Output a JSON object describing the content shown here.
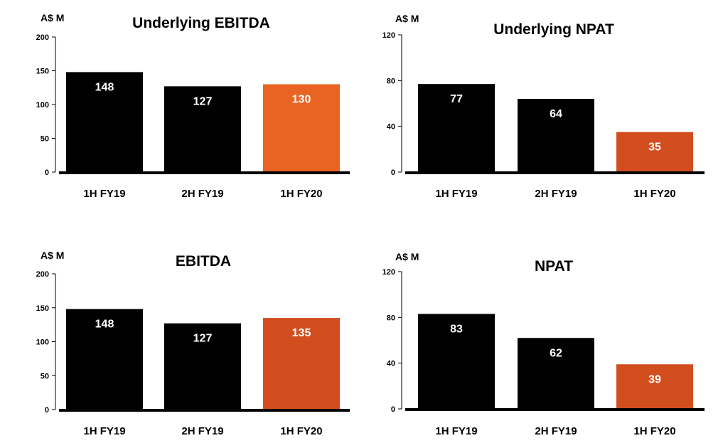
{
  "charts": [
    {
      "title": "Underlying EBITDA",
      "unit": "A$ M",
      "type": "bar",
      "categories": [
        "1H FY19",
        "2H FY19",
        "1H FY20"
      ],
      "values": [
        148,
        127,
        130
      ],
      "value_labels": [
        "148",
        "127",
        "130"
      ],
      "ylim": [
        0,
        200
      ],
      "yticks": [
        0,
        50,
        100,
        150,
        200
      ],
      "bar_colors": [
        "#000000",
        "#000000",
        "#E96322"
      ]
    },
    {
      "title": "Underlying NPAT",
      "unit": "A$ M",
      "type": "bar",
      "categories": [
        "1H FY19",
        "2H FY19",
        "1H FY20"
      ],
      "values": [
        77,
        64,
        35
      ],
      "value_labels": [
        "77",
        "64",
        "35"
      ],
      "ylim": [
        0,
        120
      ],
      "yticks": [
        0,
        40,
        80,
        120
      ],
      "bar_colors": [
        "#000000",
        "#000000",
        "#D24E1E"
      ]
    },
    {
      "title": "EBITDA",
      "unit": "A$ M",
      "type": "bar",
      "categories": [
        "1H FY19",
        "2H FY19",
        "1H FY20"
      ],
      "values": [
        148,
        127,
        135
      ],
      "value_labels": [
        "148",
        "127",
        "135"
      ],
      "ylim": [
        0,
        200
      ],
      "yticks": [
        0,
        50,
        100,
        150,
        200
      ],
      "bar_colors": [
        "#000000",
        "#000000",
        "#D24E1E"
      ]
    },
    {
      "title": "NPAT",
      "unit": "A$ M",
      "type": "bar",
      "categories": [
        "1H FY19",
        "2H FY19",
        "1H FY20"
      ],
      "values": [
        83,
        62,
        39
      ],
      "value_labels": [
        "83",
        "62",
        "39"
      ],
      "ylim": [
        0,
        120
      ],
      "yticks": [
        0,
        40,
        80,
        120
      ],
      "bar_colors": [
        "#000000",
        "#000000",
        "#D24E1E"
      ]
    }
  ],
  "chart_data": [
    {
      "type": "bar",
      "title": "Underlying EBITDA",
      "ylabel": "A$ M",
      "categories": [
        "1H FY19",
        "2H FY19",
        "1H FY20"
      ],
      "values": [
        148,
        127,
        130
      ],
      "ylim": [
        0,
        200
      ],
      "grid": false
    },
    {
      "type": "bar",
      "title": "Underlying NPAT",
      "ylabel": "A$ M",
      "categories": [
        "1H FY19",
        "2H FY19",
        "1H FY20"
      ],
      "values": [
        77,
        64,
        35
      ],
      "ylim": [
        0,
        120
      ],
      "grid": false
    },
    {
      "type": "bar",
      "title": "EBITDA",
      "ylabel": "A$ M",
      "categories": [
        "1H FY19",
        "2H FY19",
        "1H FY20"
      ],
      "values": [
        148,
        127,
        135
      ],
      "ylim": [
        0,
        200
      ],
      "grid": false
    },
    {
      "type": "bar",
      "title": "NPAT",
      "ylabel": "A$ M",
      "categories": [
        "1H FY19",
        "2H FY19",
        "1H FY20"
      ],
      "values": [
        83,
        62,
        39
      ],
      "ylim": [
        0,
        120
      ],
      "grid": false
    }
  ]
}
